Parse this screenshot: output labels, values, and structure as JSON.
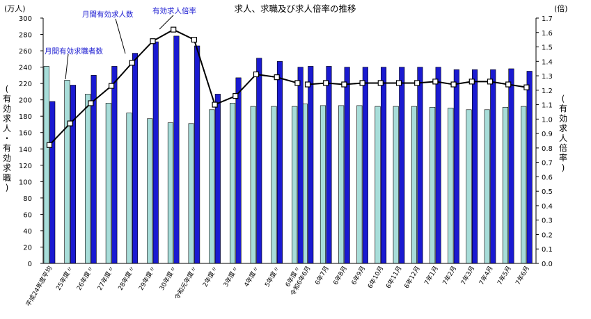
{
  "chart_data": {
    "type": "bar",
    "title": "求人、求職及び求人倍率の推移",
    "y_left": {
      "unit": "(万人)",
      "label": "(有効求人・有効求職)",
      "range": [
        0,
        300
      ],
      "ticks": [
        0,
        20,
        40,
        60,
        80,
        100,
        120,
        140,
        160,
        180,
        200,
        220,
        240,
        260,
        280,
        300
      ]
    },
    "y_right": {
      "unit": "(倍)",
      "label": "(有効求人倍率)",
      "range": [
        0.0,
        1.7
      ],
      "ticks": [
        "0.0",
        "0.1",
        "0.2",
        "0.3",
        "0.4",
        "0.5",
        "0.6",
        "0.7",
        "0.8",
        "0.9",
        "1.0",
        "1.1",
        "1.2",
        "1.3",
        "1.4",
        "1.5",
        "1.6",
        "1.7"
      ]
    },
    "grid": false,
    "categories": [
      "平成24年度平均",
      "25年度〃",
      "26年度〃",
      "27年度〃",
      "28年度〃",
      "29年度〃",
      "30年度〃",
      "令和元年度〃",
      "2年度〃",
      "3年度〃",
      "4年度〃",
      "5年度〃",
      "6年度〃",
      "令和6年6月",
      "6年7月",
      "6年8月",
      "6年9月",
      "6年10月",
      "6年11月",
      "6年12月",
      "7年1月",
      "7年2月",
      "7年3月",
      "7年4月",
      "7年5月",
      "7年6月"
    ],
    "series": [
      {
        "name": "月間有効求職者数",
        "kind": "bar",
        "axis": "left",
        "color": "#a8ddd9",
        "values": [
          241,
          224,
          207,
          196,
          184,
          177,
          172,
          171,
          188,
          196,
          192,
          192,
          192,
          195,
          193,
          193,
          193,
          192,
          192,
          192,
          191,
          190,
          188,
          188,
          191,
          192
        ]
      },
      {
        "name": "月間有効求人数",
        "kind": "bar",
        "axis": "left",
        "color": "#1a1ad1",
        "values": [
          198,
          218,
          230,
          241,
          257,
          271,
          278,
          266,
          207,
          227,
          251,
          247,
          240,
          241,
          241,
          240,
          240,
          240,
          240,
          240,
          240,
          237,
          237,
          237,
          238,
          235
        ]
      },
      {
        "name": "有効求人倍率",
        "kind": "line",
        "axis": "right",
        "color": "#000000",
        "values": [
          0.82,
          0.97,
          1.11,
          1.23,
          1.39,
          1.54,
          1.62,
          1.55,
          1.1,
          1.16,
          1.31,
          1.29,
          1.25,
          1.24,
          1.25,
          1.24,
          1.25,
          1.25,
          1.25,
          1.25,
          1.26,
          1.24,
          1.26,
          1.26,
          1.24,
          1.22
        ]
      }
    ],
    "annotations": [
      {
        "text": "月間有効求職者数",
        "series": 0
      },
      {
        "text": "月間有効求人数",
        "series": 1
      },
      {
        "text": "有効求人倍率",
        "series": 2
      }
    ]
  }
}
